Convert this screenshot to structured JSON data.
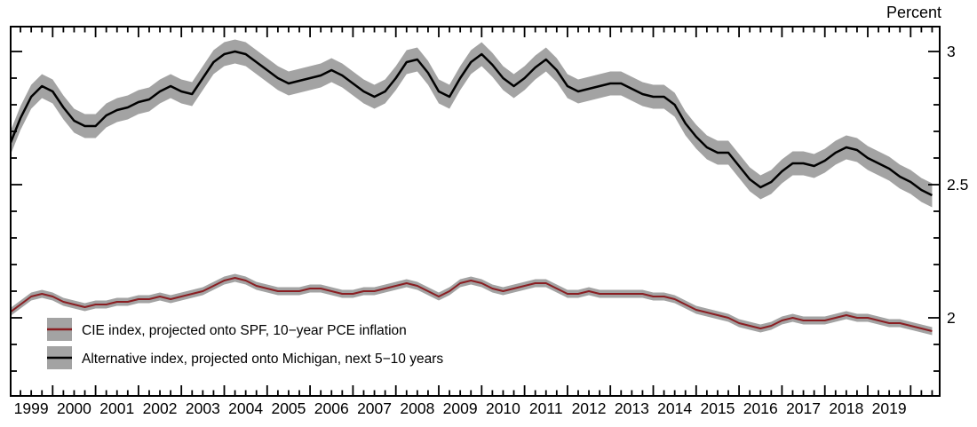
{
  "chart_data": {
    "type": "line",
    "title": "",
    "y_axis": {
      "unit": "Percent",
      "labeled_ticks": [
        {
          "label": "3",
          "value": 3.0
        },
        {
          "label": "2.5",
          "value": 2.5
        },
        {
          "label": "2",
          "value": 2.0
        }
      ],
      "minor_tick_step": 0.1,
      "minor_tick_min": 1.8,
      "minor_tick_max": 3.0,
      "range_shown": [
        1.71,
        3.09
      ]
    },
    "x_axis": {
      "year_labels": [
        "1999",
        "2000",
        "2001",
        "2002",
        "2003",
        "2004",
        "2005",
        "2006",
        "2007",
        "2008",
        "2009",
        "2010",
        "2011",
        "2012",
        "2013",
        "2014",
        "2015",
        "2016",
        "2017",
        "2018",
        "2019"
      ],
      "major_tick_years_start": 1999,
      "major_tick_years_end": 2020,
      "minor_tick_step_years": 0.25,
      "range_shown": [
        1999.0,
        2020.68
      ]
    },
    "grid": false,
    "legend_position": "bottom-left-inside",
    "x_start": 1999.0,
    "x_step": 0.25,
    "series": [
      {
        "name": "CIE index, projected onto SPF, 10−year PCE inflation",
        "color": "#8a1e22",
        "band_color": "#a3a3a3",
        "band_halfwidth": 0.015,
        "line_width": 2,
        "values": [
          2.02,
          2.05,
          2.08,
          2.09,
          2.08,
          2.06,
          2.05,
          2.04,
          2.05,
          2.05,
          2.06,
          2.06,
          2.07,
          2.07,
          2.08,
          2.07,
          2.08,
          2.09,
          2.1,
          2.12,
          2.14,
          2.15,
          2.14,
          2.12,
          2.11,
          2.1,
          2.1,
          2.1,
          2.11,
          2.11,
          2.1,
          2.09,
          2.09,
          2.1,
          2.1,
          2.11,
          2.12,
          2.13,
          2.12,
          2.1,
          2.08,
          2.1,
          2.13,
          2.14,
          2.13,
          2.11,
          2.1,
          2.11,
          2.12,
          2.13,
          2.13,
          2.11,
          2.09,
          2.09,
          2.1,
          2.09,
          2.09,
          2.09,
          2.09,
          2.09,
          2.08,
          2.08,
          2.07,
          2.05,
          2.03,
          2.02,
          2.01,
          2.0,
          1.98,
          1.97,
          1.96,
          1.97,
          1.99,
          2.0,
          1.99,
          1.99,
          1.99,
          2.0,
          2.01,
          2.0,
          2.0,
          1.99,
          1.98,
          1.98,
          1.97,
          1.96,
          1.95
        ]
      },
      {
        "name": "Alternative index, projected onto Michigan, next 5−10 years",
        "color": "#000000",
        "band_color": "#a3a3a3",
        "band_halfwidth": 0.045,
        "line_width": 2.5,
        "values": [
          2.65,
          2.75,
          2.83,
          2.87,
          2.85,
          2.79,
          2.74,
          2.72,
          2.72,
          2.76,
          2.78,
          2.79,
          2.81,
          2.82,
          2.85,
          2.87,
          2.85,
          2.84,
          2.9,
          2.96,
          2.99,
          3.0,
          2.99,
          2.96,
          2.93,
          2.9,
          2.88,
          2.89,
          2.9,
          2.91,
          2.93,
          2.91,
          2.88,
          2.85,
          2.83,
          2.85,
          2.9,
          2.96,
          2.97,
          2.92,
          2.85,
          2.83,
          2.9,
          2.96,
          2.99,
          2.95,
          2.9,
          2.87,
          2.9,
          2.94,
          2.97,
          2.93,
          2.87,
          2.85,
          2.86,
          2.87,
          2.88,
          2.88,
          2.86,
          2.84,
          2.83,
          2.83,
          2.8,
          2.73,
          2.68,
          2.64,
          2.62,
          2.62,
          2.57,
          2.52,
          2.49,
          2.51,
          2.55,
          2.58,
          2.58,
          2.57,
          2.59,
          2.62,
          2.64,
          2.63,
          2.6,
          2.58,
          2.56,
          2.53,
          2.51,
          2.48,
          2.46
        ]
      }
    ]
  },
  "legend": {
    "items": [
      {
        "label": "CIE index, projected onto SPF, 10−year PCE inflation"
      },
      {
        "label": "Alternative index, projected onto Michigan, next 5−10 years"
      }
    ]
  }
}
